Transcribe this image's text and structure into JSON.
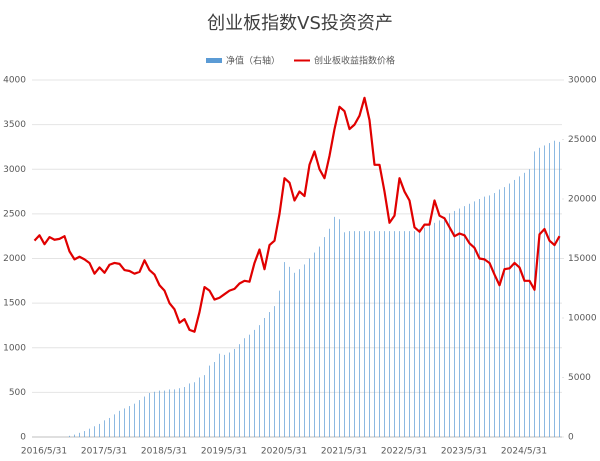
{
  "chart_data": {
    "type": "combo",
    "title": "创业板指数VS投资资产",
    "categories": [
      "2016/5/31",
      null,
      null,
      null,
      null,
      null,
      null,
      null,
      null,
      null,
      null,
      null,
      "2017/5/31",
      null,
      null,
      null,
      null,
      null,
      null,
      null,
      null,
      null,
      null,
      null,
      "2018/5/31",
      null,
      null,
      null,
      null,
      null,
      null,
      null,
      null,
      null,
      null,
      null,
      "2019/5/31",
      null,
      null,
      null,
      null,
      null,
      null,
      null,
      null,
      null,
      null,
      null,
      "2020/5/31",
      null,
      null,
      null,
      null,
      null,
      null,
      null,
      null,
      null,
      null,
      null,
      "2021/5/31",
      null,
      null,
      null,
      null,
      null,
      null,
      null,
      null,
      null,
      null,
      null,
      "2022/5/31",
      null,
      null,
      null,
      null,
      null,
      null,
      null,
      null,
      null,
      null,
      null,
      "2023/5/31",
      null,
      null,
      null,
      null,
      null,
      null,
      null,
      null,
      null,
      null,
      null,
      "2024/5/31",
      null,
      null,
      null,
      null,
      null,
      null,
      null,
      null,
      null
    ],
    "series": [
      {
        "name": "净值（右轴）",
        "type": "bar",
        "axis": "y2",
        "color": "#5b9bd5",
        "values": [
          0,
          0,
          0,
          0,
          0,
          0,
          0,
          100,
          200,
          350,
          500,
          700,
          900,
          1100,
          1400,
          1600,
          1900,
          2200,
          2400,
          2600,
          2800,
          3100,
          3400,
          3700,
          3800,
          3900,
          3900,
          4000,
          4000,
          4100,
          4200,
          4500,
          4600,
          5000,
          5200,
          6000,
          6300,
          7000,
          6900,
          7100,
          7400,
          7800,
          8300,
          8600,
          9000,
          9400,
          10000,
          10500,
          11000,
          12300,
          14700,
          14300,
          13800,
          14100,
          14500,
          15000,
          15500,
          16000,
          16800,
          17500,
          18500,
          18300,
          17200,
          17300,
          17300,
          17300,
          17300,
          17300,
          17300,
          17300,
          17300,
          17300,
          17300,
          17300,
          17300,
          17300,
          17300,
          17500,
          17600,
          17800,
          18000,
          18200,
          18500,
          18800,
          19000,
          19200,
          19400,
          19600,
          19800,
          20000,
          20200,
          20300,
          20500,
          20800,
          21000,
          21300,
          21600,
          21900,
          22200,
          22500,
          24000,
          24300,
          24500,
          24700,
          24900,
          24800
        ]
      },
      {
        "name": "创业板收益指数价格",
        "type": "line",
        "color": "#e00000",
        "values": [
          2200,
          2260,
          2160,
          2240,
          2210,
          2220,
          2250,
          2080,
          1990,
          2020,
          1990,
          1950,
          1830,
          1900,
          1840,
          1930,
          1950,
          1940,
          1870,
          1860,
          1830,
          1850,
          1980,
          1870,
          1820,
          1700,
          1640,
          1500,
          1430,
          1280,
          1320,
          1200,
          1180,
          1400,
          1680,
          1640,
          1540,
          1560,
          1600,
          1640,
          1660,
          1720,
          1750,
          1740,
          1950,
          2100,
          1880,
          2150,
          2200,
          2500,
          2900,
          2850,
          2650,
          2750,
          2700,
          3050,
          3200,
          3000,
          2900,
          3150,
          3450,
          3700,
          3650,
          3450,
          3500,
          3600,
          3800,
          3550,
          3050,
          3050,
          2750,
          2400,
          2480,
          2900,
          2750,
          2650,
          2350,
          2300,
          2380,
          2380,
          2650,
          2480,
          2450,
          2350,
          2250,
          2280,
          2260,
          2170,
          2120,
          2000,
          1990,
          1950,
          1820,
          1700,
          1880,
          1890,
          1950,
          1900,
          1750,
          1750,
          1650,
          2270,
          2330,
          2200,
          2150,
          2250
        ]
      }
    ],
    "ylim": [
      0,
      4000
    ],
    "yticks": [
      0,
      500,
      1000,
      1500,
      2000,
      2500,
      3000,
      3500,
      4000
    ],
    "y2lim": [
      0,
      30000
    ],
    "y2ticks": [
      0,
      5000,
      10000,
      15000,
      20000,
      25000,
      30000
    ],
    "grid": true
  }
}
